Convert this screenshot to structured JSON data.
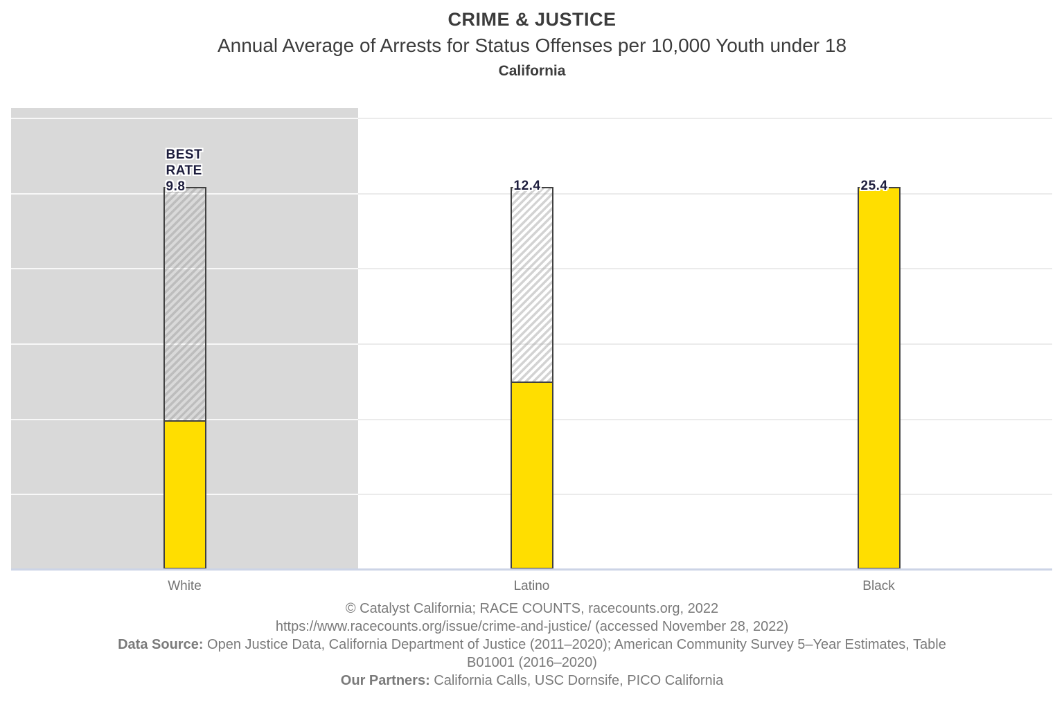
{
  "header": {
    "category": "CRIME & JUSTICE",
    "title": "Annual Average of Arrests for Status Offenses per 10,000 Youth under 18",
    "region": "California"
  },
  "chart_data": {
    "type": "bar",
    "title": "Annual Average of Arrests for Status Offenses per 10,000 Youth under 18",
    "subtitle": "California",
    "categories": [
      "White",
      "Latino",
      "Black"
    ],
    "values": [
      9.8,
      12.4,
      25.4
    ],
    "bar_labels": [
      "9.8",
      "12.4",
      "25.4"
    ],
    "best_rate": {
      "category": "White",
      "lines": [
        "BEST",
        "RATE"
      ],
      "value_label": "9.8"
    },
    "worst_value": 25.4,
    "xlabel": "",
    "ylabel": "",
    "ylim": [
      0,
      30.65
    ],
    "gridline_values": [
      5,
      10,
      15,
      20,
      25,
      30
    ],
    "grid": "on",
    "legend": "none",
    "highlight_band_category": "White",
    "bar_style": "solid fill = group rate; hatched extension up to worst rate (25.4)",
    "colors": {
      "bar_fill": "#ffde00",
      "bar_outline": "#404040",
      "highlight_band": "#d9d9d9",
      "value_label_text": "#1d1d3d",
      "gridline_on_white": "#ebebeb",
      "gridline_on_band": "#f5f5f5",
      "baseline": "#ccd4e6",
      "tick_label": "#737373",
      "header_text": "#3c3c3c",
      "footer_text": "#7a7a7a"
    }
  },
  "footer": {
    "lines": [
      {
        "bold": "",
        "text": "© Catalyst California; RACE COUNTS, racecounts.org, 2022"
      },
      {
        "bold": "",
        "text": "https://www.racecounts.org/issue/crime-and-justice/ (accessed November 28, 2022)"
      },
      {
        "bold": "Data Source:",
        "text": " Open Justice Data, California Department of Justice (2011–2020); American Community Survey 5–Year Estimates, Table"
      },
      {
        "bold": "",
        "text": "B01001 (2016–2020)"
      },
      {
        "bold": "Our Partners:",
        "text": " California Calls, USC Dornsife, PICO California"
      }
    ]
  }
}
